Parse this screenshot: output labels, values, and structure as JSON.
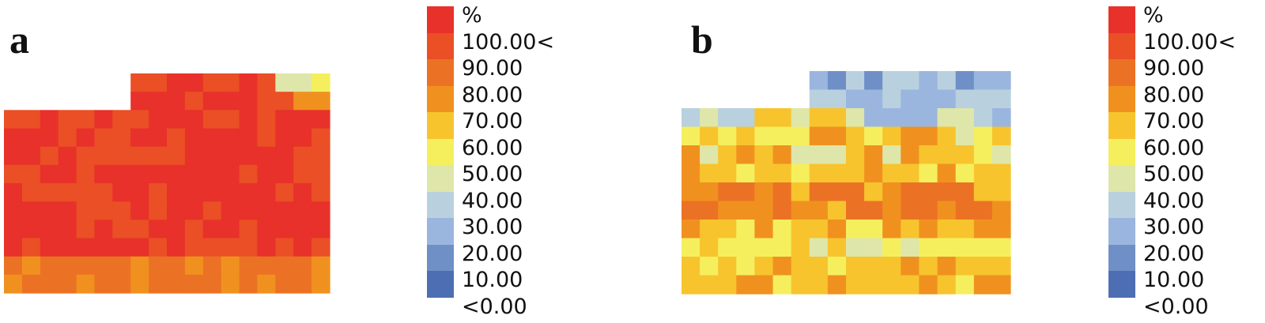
{
  "scale": {
    "unit": "%",
    "labels": [
      "100.00<",
      "90.00",
      "80.00",
      "70.00",
      "60.00",
      "50.00",
      "40.00",
      "30.00",
      "20.00",
      "10.00",
      "<0.00"
    ],
    "colors": [
      "#e8312a",
      "#ea4f26",
      "#eb7224",
      "#f0911f",
      "#f7c42e",
      "#f5ef5e",
      "#dfe6a9",
      "#b9d0df",
      "#9bb6de",
      "#6f8fc7",
      "#4d6eb3"
    ]
  },
  "panels": [
    {
      "label": "a"
    },
    {
      "label": "b"
    }
  ]
}
